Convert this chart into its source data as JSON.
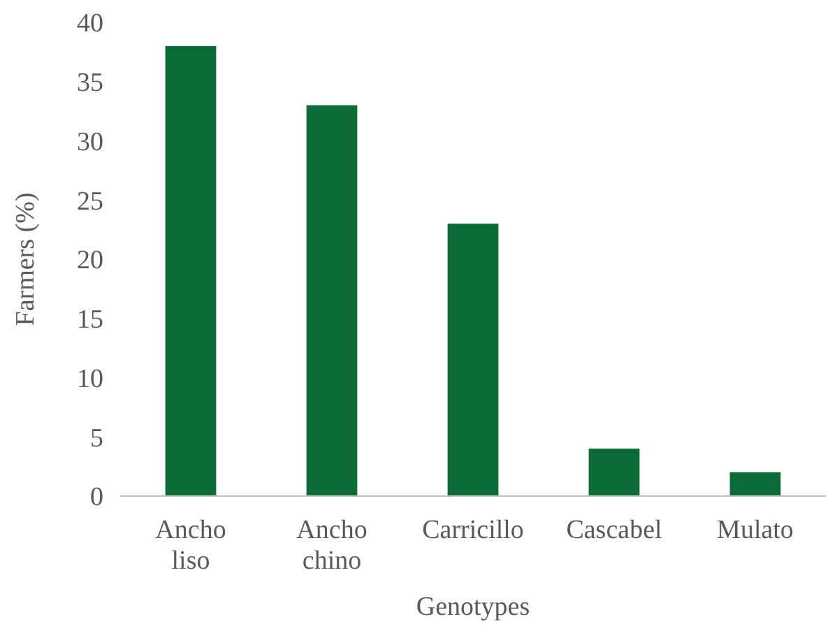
{
  "chart_data": {
    "type": "bar",
    "xlabel": "Genotypes",
    "ylabel": "Farmers (%)",
    "categories": [
      "Ancho liso",
      "Ancho chino",
      "Carricillo",
      "Cascabel",
      "Mulato"
    ],
    "values": [
      38,
      33,
      23,
      4,
      2
    ],
    "color": "#0a6b36",
    "ylim": [
      0,
      40
    ],
    "yticks": [
      0,
      5,
      10,
      15,
      20,
      25,
      30,
      35,
      40
    ],
    "grid": false
  }
}
